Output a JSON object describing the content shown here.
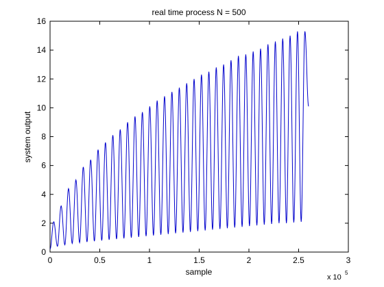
{
  "chart_data": {
    "type": "line",
    "title": "real time process N = 500",
    "xlabel": "sample",
    "ylabel": "system output",
    "x_exponent_label": "x 10",
    "x_exponent_power": "5",
    "xlim": [
      0,
      3
    ],
    "ylim": [
      0,
      16
    ],
    "xticks": [
      "0",
      "0.5",
      "1",
      "1.5",
      "2",
      "2.5",
      "3"
    ],
    "yticks": [
      "0",
      "2",
      "4",
      "6",
      "8",
      "10",
      "12",
      "14",
      "16"
    ],
    "grid": false,
    "line_color": "#0000cc",
    "series": [
      {
        "x_start": 0,
        "x_end": 2.6,
        "cycles": 35,
        "peaks": [
          2.1,
          3.2,
          4.4,
          5.0,
          5.9,
          6.4,
          7.1,
          7.6,
          8.1,
          8.5,
          9.0,
          9.4,
          9.7,
          10.1,
          10.5,
          10.8,
          11.1,
          11.4,
          11.7,
          12.0,
          12.3,
          12.5,
          12.8,
          13.0,
          13.3,
          13.6,
          13.7,
          13.9,
          14.1,
          14.4,
          14.6,
          14.8,
          15.0,
          15.3,
          15.3
        ],
        "troughs": [
          0.2,
          0.4,
          0.5,
          0.6,
          0.65,
          0.7,
          0.75,
          0.8,
          0.85,
          0.9,
          0.95,
          1.0,
          1.05,
          1.1,
          1.15,
          1.2,
          1.25,
          1.3,
          1.35,
          1.4,
          1.45,
          1.5,
          1.55,
          1.6,
          1.65,
          1.7,
          1.75,
          1.8,
          1.85,
          1.9,
          1.95,
          2.0,
          2.0,
          2.05,
          2.1
        ],
        "end_value": 10.1
      }
    ]
  }
}
